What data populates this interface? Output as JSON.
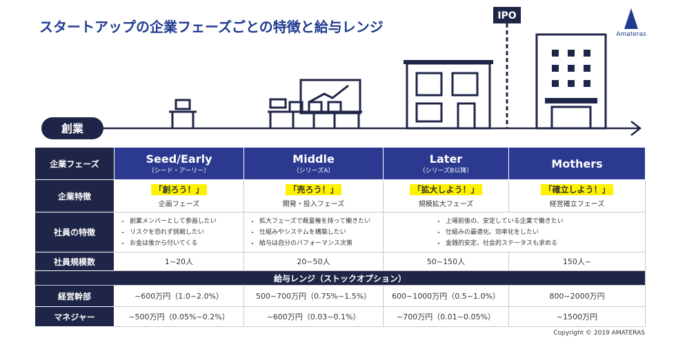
{
  "header": {
    "title": "スタートアップの企業フェーズごとの特徴と給与レンジ",
    "logo": "Amateras",
    "ipo": "IPO",
    "start": "創業"
  },
  "table": {
    "phase_label": "企業フェーズ",
    "phases": [
      {
        "name": "Seed/Early",
        "sub": "（シード・アーリー）"
      },
      {
        "name": "Middle",
        "sub": "（シリーズA）"
      },
      {
        "name": "Later",
        "sub": "（シリーズB以降）"
      },
      {
        "name": "Mothers"
      }
    ],
    "features": {
      "label": "企業特徴",
      "items": [
        {
          "slogan": "「創ろう！」",
          "desc": "企画フェーズ"
        },
        {
          "slogan": "「売ろう！」",
          "desc": "開発・投入フェーズ"
        },
        {
          "slogan": "「拡大しよう！」",
          "desc": "規模拡大フェーズ"
        },
        {
          "slogan": "「確立しよう！」",
          "desc": "経営確立フェーズ"
        }
      ]
    },
    "employees": {
      "label": "社員の特徴",
      "lists": [
        [
          "創業メンバーとして参画したい",
          "リスクを恐れず挑戦したい",
          "お金は後から付いてくる"
        ],
        [
          "拡大フェーズで裁量権を持って働きたい",
          "仕組みやシステムを構築したい",
          "給与は自分のパフォーマンス次第"
        ],
        [
          "上場前後の、安定している企業で働きたい",
          "仕組みの最適化、効率化をしたい",
          "金銭的安定、社会的ステータスも求める"
        ]
      ]
    },
    "size": {
      "label": "社員規模数",
      "values": [
        "1~20人",
        "20~50人",
        "50~150人",
        "150人~"
      ]
    },
    "salary_title": "給与レンジ（ストックオプション）",
    "executive": {
      "label": "経営幹部",
      "values": [
        "~600万円（1.0~2.0%）",
        "500~700万円（0.75%~1.5%）",
        "600~1000万円（0.5~1.0%）",
        "800~2000万円"
      ]
    },
    "manager": {
      "label": "マネジャー",
      "values": [
        "~500万円（0.05%~0.2%）",
        "~600万円（0.03~0.1%）",
        "~700万円（0.01~0.05%）",
        "~1500万円"
      ]
    }
  },
  "footer": {
    "copyright": "Copyright © 2019 AMATERAS"
  }
}
